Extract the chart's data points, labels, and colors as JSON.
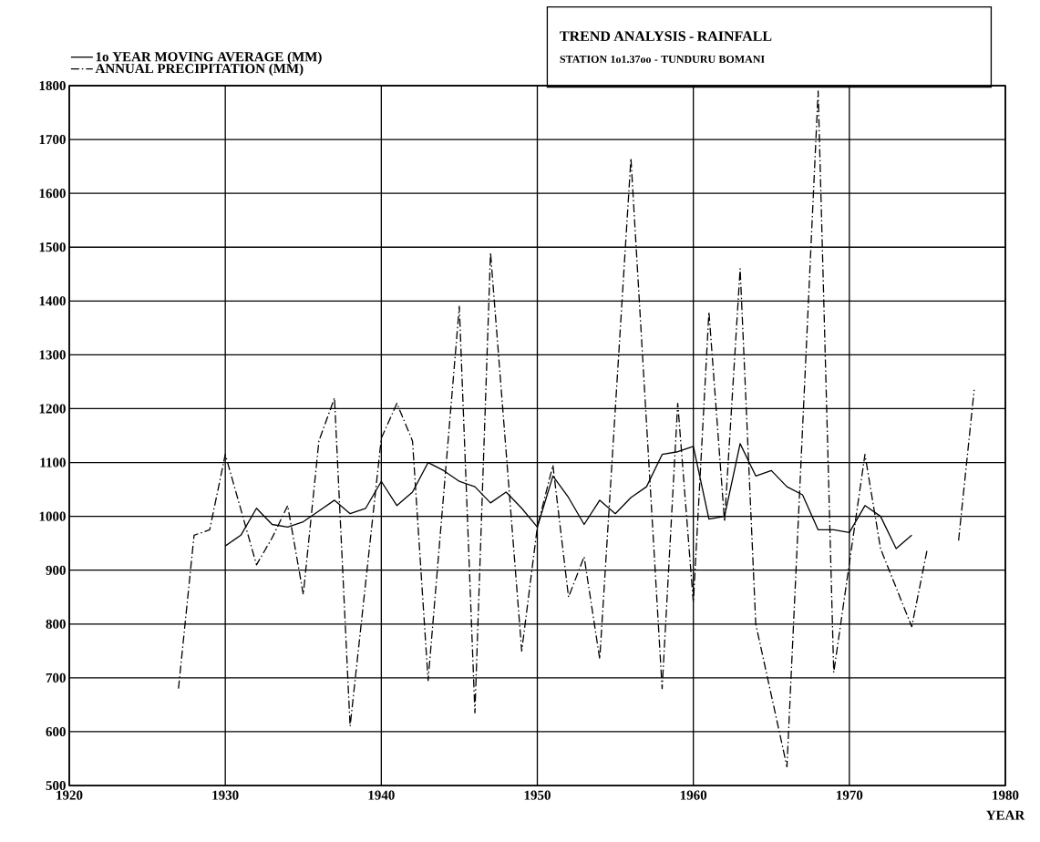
{
  "chart_data": {
    "type": "line",
    "title": "TREND ANALYSIS - RAINFALL",
    "subtitle": "STATION 1o1.37oo - TUNDURU BOMANI",
    "xlabel": "YEAR",
    "xlim": [
      1920,
      1980
    ],
    "xticks": [
      1920,
      1930,
      1940,
      1950,
      1960,
      1970,
      1980
    ],
    "ylim": [
      500,
      1800
    ],
    "yticks": [
      500,
      600,
      700,
      800,
      900,
      1000,
      1100,
      1200,
      1300,
      1400,
      1500,
      1600,
      1700,
      1800
    ],
    "grid": true,
    "legend": "top left",
    "series": [
      {
        "name": "1o YEAR MOVING AVERAGE (MM)",
        "color": "#000000",
        "line_style": "solid",
        "x": [
          1930,
          1931,
          1932,
          1933,
          1934,
          1935,
          1936,
          1937,
          1938,
          1939,
          1940,
          1941,
          1942,
          1943,
          1944,
          1945,
          1946,
          1947,
          1948,
          1949,
          1950,
          1951,
          1952,
          1953,
          1954,
          1955,
          1956,
          1957,
          1958,
          1959,
          1960,
          1961,
          1962,
          1963,
          1964,
          1965,
          1966,
          1967,
          1968,
          1969,
          1970,
          1971,
          1972,
          1973,
          1974
        ],
        "values": [
          945,
          965,
          1015,
          985,
          980,
          990,
          1010,
          1030,
          1005,
          1015,
          1065,
          1020,
          1045,
          1100,
          1085,
          1065,
          1055,
          1025,
          1045,
          1015,
          980,
          1075,
          1035,
          985,
          1030,
          1005,
          1035,
          1055,
          1115,
          1120,
          1130,
          995,
          1000,
          1135,
          1075,
          1085,
          1055,
          1040,
          975,
          975,
          970,
          1020,
          1000,
          940,
          965
        ]
      },
      {
        "name": "ANNUAL PRECIPITATION  (MM)",
        "color": "#000000",
        "line_style": "dashdot",
        "x": [
          1927,
          1928,
          1929,
          1930,
          1932,
          1933,
          1934,
          1935,
          1936,
          1937,
          1938,
          1940,
          1941,
          1942,
          1943,
          1945,
          1946,
          1947,
          1949,
          1950,
          1951,
          1952,
          1953,
          1954,
          1956,
          1958,
          1959,
          1960,
          1961,
          1962,
          1963,
          1964,
          1966,
          1968,
          1969,
          1971,
          1972,
          1974,
          1975,
          1976,
          1977,
          1978
        ],
        "values": [
          680,
          965,
          975,
          1115,
          910,
          960,
          1020,
          855,
          1140,
          1220,
          610,
          1145,
          1210,
          1140,
          695,
          1390,
          635,
          1490,
          750,
          980,
          1095,
          850,
          925,
          735,
          1665,
          680,
          1210,
          840,
          1380,
          990,
          1460,
          800,
          535,
          1790,
          710,
          1115,
          940,
          795,
          940,
          null,
          955,
          1235
        ]
      }
    ]
  }
}
